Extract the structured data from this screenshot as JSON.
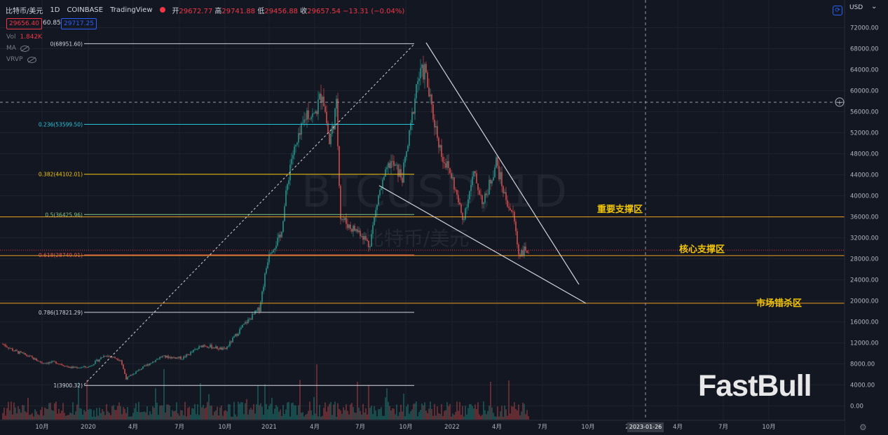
{
  "header": {
    "symbol": "比特币/美元",
    "interval": "1D",
    "exchange": "COINBASE",
    "platform": "TradingView",
    "open_label": "开",
    "open": "29672.77",
    "high_label": "高",
    "high": "29741.88",
    "low_label": "低",
    "low": "29456.88",
    "close_label": "收",
    "close": "29657.54",
    "change": "−13.31 (−0.04%)"
  },
  "price_boxes": {
    "bid": "29656.40",
    "spread": "60.85",
    "ask": "29717.25"
  },
  "indicators": {
    "vol_label": "Vol",
    "vol_value": "1.842K",
    "ma_label": "MA",
    "vrvp_label": "VRVP"
  },
  "axis": {
    "currency": "USD",
    "y_ticks": [
      "72000.00",
      "68000.00",
      "64000.00",
      "60000.00",
      "56000.00",
      "52000.00",
      "48000.00",
      "44000.00",
      "40000.00",
      "36000.00",
      "32000.00",
      "28000.00",
      "24000.00",
      "20000.00",
      "16000.00",
      "12000.00",
      "8000.00",
      "4000.00",
      "0.00"
    ],
    "crosshair_price": "57825.71",
    "crosshair_date": "2023-01-26",
    "x_ticks": [
      "10月",
      "2020",
      "4月",
      "7月",
      "10月",
      "2021",
      "4月",
      "7月",
      "10月",
      "2022",
      "4月",
      "7月",
      "10月",
      "2023",
      "4月",
      "7月",
      "10月"
    ]
  },
  "fib_levels": [
    {
      "ratio": "0",
      "label": "0(68951.60)",
      "price": 68951.6,
      "color": "#d1d4dc"
    },
    {
      "ratio": "0.236",
      "label": "0.236(53599.50)",
      "price": 53599.5,
      "color": "#26c6da"
    },
    {
      "ratio": "0.382",
      "label": "0.382(44102.01)",
      "price": 44102.01,
      "color": "#f0c40a"
    },
    {
      "ratio": "0.5",
      "label": "0.5(36425.96)",
      "price": 36425.96,
      "color": "#81c784"
    },
    {
      "ratio": "0.618",
      "label": "0.618(28749.91)",
      "price": 28749.91,
      "color": "#ef5350"
    },
    {
      "ratio": "0.786",
      "label": "0.786(17821.29)",
      "price": 17821.29,
      "color": "#d1d4dc"
    },
    {
      "ratio": "1",
      "label": "1(3900.32)",
      "price": 3900.32,
      "color": "#d1d4dc"
    }
  ],
  "levels": [
    {
      "name": "重要支撑区",
      "price": 35983.54,
      "label": "35983.54"
    },
    {
      "name": "核心支撑区",
      "price": 28615.13,
      "label": "28615.13"
    },
    {
      "name": "市场错杀区",
      "price": 19544.6,
      "label": "19544.60"
    }
  ],
  "last_price": {
    "price": 29657.54,
    "label": "29657.54"
  },
  "watermark": {
    "symbol": "BTCUSD, 1D",
    "name": "比特币/美元",
    "brand": "FastBull"
  },
  "colors": {
    "up": "#26a69a",
    "down": "#ef5350",
    "level": "#f0a020",
    "accent": "#2962ff"
  }
}
